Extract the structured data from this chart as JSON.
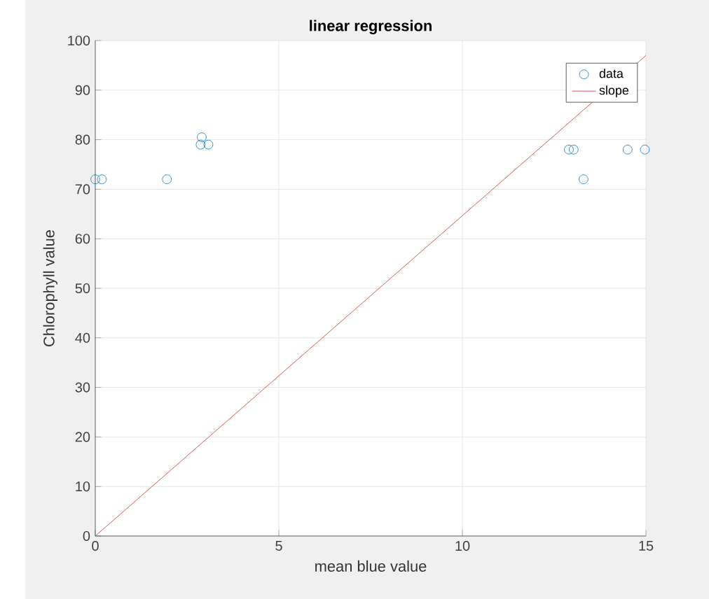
{
  "chart_data": {
    "type": "scatter",
    "title": "linear regression",
    "xlabel": "mean blue value",
    "ylabel": "Chlorophyll value",
    "xlim": [
      0,
      15
    ],
    "ylim": [
      0,
      100
    ],
    "xticks": [
      0,
      5,
      10,
      15
    ],
    "yticks": [
      0,
      10,
      20,
      30,
      40,
      50,
      60,
      70,
      80,
      90,
      100
    ],
    "grid": true,
    "legend": "top right",
    "series": [
      {
        "name": "data",
        "marker": "circle",
        "color": "#0072bd",
        "x": [
          0,
          0.18,
          1.95,
          2.9,
          2.87,
          3.08,
          12.9,
          13.03,
          13.3,
          14.5,
          14.97
        ],
        "values": [
          72,
          72,
          72,
          80.5,
          79,
          79,
          78,
          78,
          72,
          78,
          78
        ]
      },
      {
        "name": "slope",
        "type": "line",
        "marker": "none",
        "line_style": "solid",
        "color": "#d03030",
        "x": [
          0,
          15
        ],
        "values": [
          0,
          97
        ]
      }
    ]
  }
}
